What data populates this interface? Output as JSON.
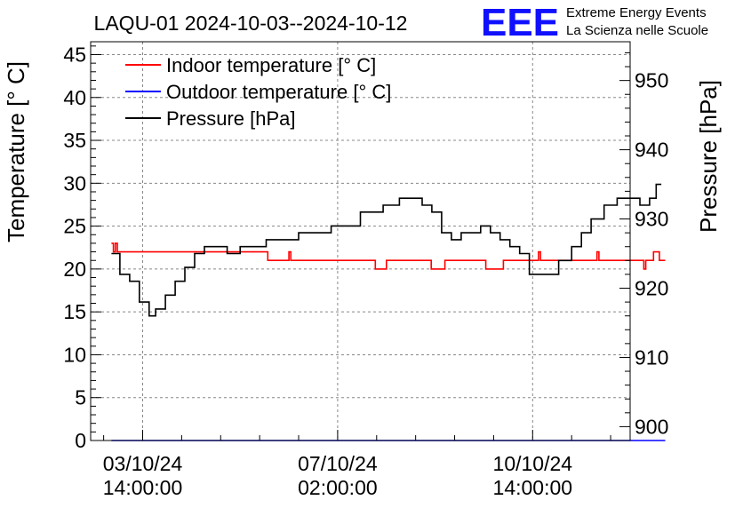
{
  "chart_data": {
    "type": "line",
    "title": "LAQU-01 2024-10-03--2024-10-12",
    "ylabel": "Temperature [° C]",
    "y2label": "Pressure [hPa]",
    "ylim": [
      0,
      46.5
    ],
    "y2lim": [
      898,
      955.6
    ],
    "yticks": [
      0,
      5,
      10,
      15,
      20,
      25,
      30,
      35,
      40,
      45
    ],
    "y2ticks": [
      900,
      910,
      920,
      930,
      940,
      950
    ],
    "xlim_hours": [
      -16,
      150
    ],
    "xtick_hours": [
      0,
      60,
      120
    ],
    "xticks": [
      {
        "hours": 0,
        "date": "03/10/24",
        "time": "14:00:00"
      },
      {
        "hours": 60,
        "date": "07/10/24",
        "time": "02:00:00"
      },
      {
        "hours": 120,
        "date": "10/10/24",
        "time": "14:00:00"
      }
    ],
    "legend": [
      "Indoor temperature [° C]",
      "Outdoor temperature [° C]",
      "Pressure [hPa]"
    ],
    "grid": true,
    "series": [
      {
        "name": "Indoor temperature [° C]",
        "color": "#ff0000",
        "axis": "left",
        "points": [
          [
            -9.6,
            23
          ],
          [
            -9,
            22
          ],
          [
            -8.4,
            23
          ],
          [
            -7.8,
            22
          ],
          [
            37.5,
            22
          ],
          [
            38.5,
            21
          ],
          [
            44.4,
            21
          ],
          [
            45,
            22
          ],
          [
            45.6,
            21
          ],
          [
            71,
            21
          ],
          [
            71.6,
            20
          ],
          [
            74.4,
            20
          ],
          [
            75,
            21
          ],
          [
            88.2,
            21
          ],
          [
            88.8,
            20
          ],
          [
            92.4,
            20
          ],
          [
            93,
            21
          ],
          [
            105,
            21
          ],
          [
            105.6,
            20
          ],
          [
            110.4,
            20
          ],
          [
            111,
            21
          ],
          [
            121.2,
            21
          ],
          [
            121.8,
            22
          ],
          [
            122.4,
            21
          ],
          [
            139.2,
            21
          ],
          [
            139.8,
            22
          ],
          [
            140.4,
            21
          ],
          [
            153.6,
            21
          ],
          [
            154.2,
            20
          ],
          [
            154.8,
            21
          ],
          [
            156.6,
            21
          ],
          [
            157.2,
            22
          ],
          [
            158.4,
            22
          ],
          [
            159,
            21
          ],
          [
            160.8,
            21
          ]
        ]
      },
      {
        "name": "Outdoor temperature [° C]",
        "color": "#0000ff",
        "axis": "left",
        "points": [
          [
            -9.6,
            0
          ],
          [
            160.8,
            0
          ]
        ]
      },
      {
        "name": "Pressure [hPa]",
        "color": "#000000",
        "axis": "right",
        "points": [
          [
            -9.6,
            925
          ],
          [
            -7,
            922
          ],
          [
            -4,
            921
          ],
          [
            -1,
            918
          ],
          [
            2,
            916
          ],
          [
            4,
            917
          ],
          [
            7,
            919
          ],
          [
            10,
            921
          ],
          [
            13,
            923
          ],
          [
            16,
            925
          ],
          [
            19,
            926
          ],
          [
            22,
            926
          ],
          [
            26,
            925
          ],
          [
            30,
            926
          ],
          [
            35,
            926
          ],
          [
            38,
            927
          ],
          [
            43,
            927
          ],
          [
            48,
            928
          ],
          [
            53,
            928
          ],
          [
            58,
            929
          ],
          [
            63,
            929
          ],
          [
            67,
            931
          ],
          [
            71,
            931
          ],
          [
            74,
            932
          ],
          [
            79,
            933
          ],
          [
            83,
            933
          ],
          [
            86,
            932
          ],
          [
            89,
            931
          ],
          [
            92,
            928
          ],
          [
            95,
            927
          ],
          [
            98,
            928
          ],
          [
            101,
            928
          ],
          [
            104,
            929
          ],
          [
            107,
            928
          ],
          [
            110,
            927
          ],
          [
            113,
            926
          ],
          [
            116,
            925
          ],
          [
            119,
            922
          ],
          [
            124,
            922
          ],
          [
            128,
            924
          ],
          [
            132,
            926
          ],
          [
            135,
            928
          ],
          [
            138,
            930
          ],
          [
            142,
            932
          ],
          [
            146,
            933
          ],
          [
            150,
            933
          ],
          [
            153,
            932
          ],
          [
            156,
            933
          ],
          [
            158,
            935
          ],
          [
            159.6,
            935
          ]
        ]
      }
    ]
  },
  "logo": {
    "mark": "EEE",
    "line1": "Extreme Energy Events",
    "line2": "La Scienza nelle Scuole",
    "color": "#1010ff"
  }
}
